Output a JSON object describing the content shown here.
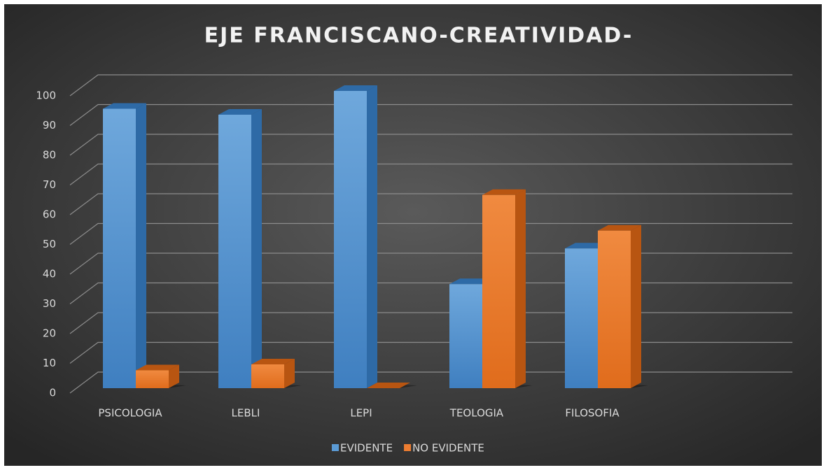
{
  "chart_data": {
    "type": "bar3d",
    "title": "EJE FRANCISCANO-CREATIVIDAD-",
    "categories": [
      "PSICOLOGIA",
      "LEBLI",
      "LEPI",
      "TEOLOGIA",
      "FILOSOFIA"
    ],
    "series": [
      {
        "name": "EVIDENTE",
        "color": "#5b9bd5",
        "values": [
          94,
          92,
          100,
          35,
          47
        ]
      },
      {
        "name": "NO EVIDENTE",
        "color": "#ed7d31",
        "values": [
          6,
          8,
          0,
          65,
          53
        ]
      }
    ],
    "ylim": [
      0,
      100
    ],
    "yticks": [
      0,
      10,
      20,
      30,
      40,
      50,
      60,
      70,
      80,
      90,
      100
    ],
    "grid": true,
    "legend": "bottom"
  }
}
